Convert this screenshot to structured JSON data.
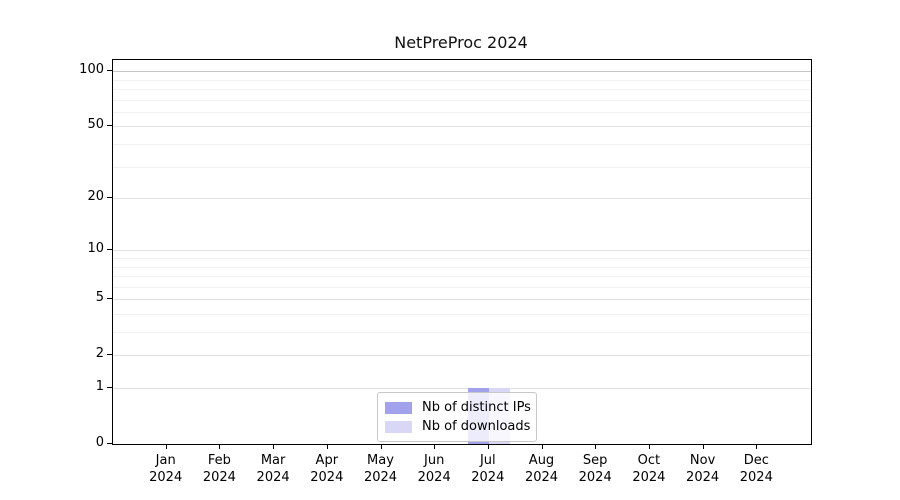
{
  "chart_data": {
    "type": "bar",
    "title": "NetPreProc 2024",
    "categories": [
      {
        "month": "Jan",
        "year": "2024"
      },
      {
        "month": "Feb",
        "year": "2024"
      },
      {
        "month": "Mar",
        "year": "2024"
      },
      {
        "month": "Apr",
        "year": "2024"
      },
      {
        "month": "May",
        "year": "2024"
      },
      {
        "month": "Jun",
        "year": "2024"
      },
      {
        "month": "Jul",
        "year": "2024"
      },
      {
        "month": "Aug",
        "year": "2024"
      },
      {
        "month": "Sep",
        "year": "2024"
      },
      {
        "month": "Oct",
        "year": "2024"
      },
      {
        "month": "Nov",
        "year": "2024"
      },
      {
        "month": "Dec",
        "year": "2024"
      }
    ],
    "series": [
      {
        "name": "Nb of distinct IPs",
        "color": "#a2a2ec",
        "values": [
          0,
          0,
          0,
          0,
          0,
          0,
          1,
          0,
          0,
          0,
          0,
          0
        ]
      },
      {
        "name": "Nb of downloads",
        "color": "#d8d8f6",
        "values": [
          0,
          0,
          0,
          0,
          0,
          0,
          1,
          0,
          0,
          0,
          0,
          0
        ]
      }
    ],
    "yscale": "log1p",
    "ylim": [
      0,
      115
    ],
    "yticks": [
      0,
      1,
      2,
      5,
      10,
      20,
      50,
      100
    ],
    "yticks_minor": [
      3,
      4,
      6,
      7,
      8,
      9,
      30,
      40,
      60,
      70,
      80,
      90
    ],
    "grid": true,
    "legend_position": "lower center",
    "colors": {
      "axis": "#000000",
      "grid_major": "#e2e2e2",
      "grid_major_top": "#c6c6c6",
      "grid_minor": "#f1f1f1",
      "legend_border": "#c8c8c8"
    }
  }
}
